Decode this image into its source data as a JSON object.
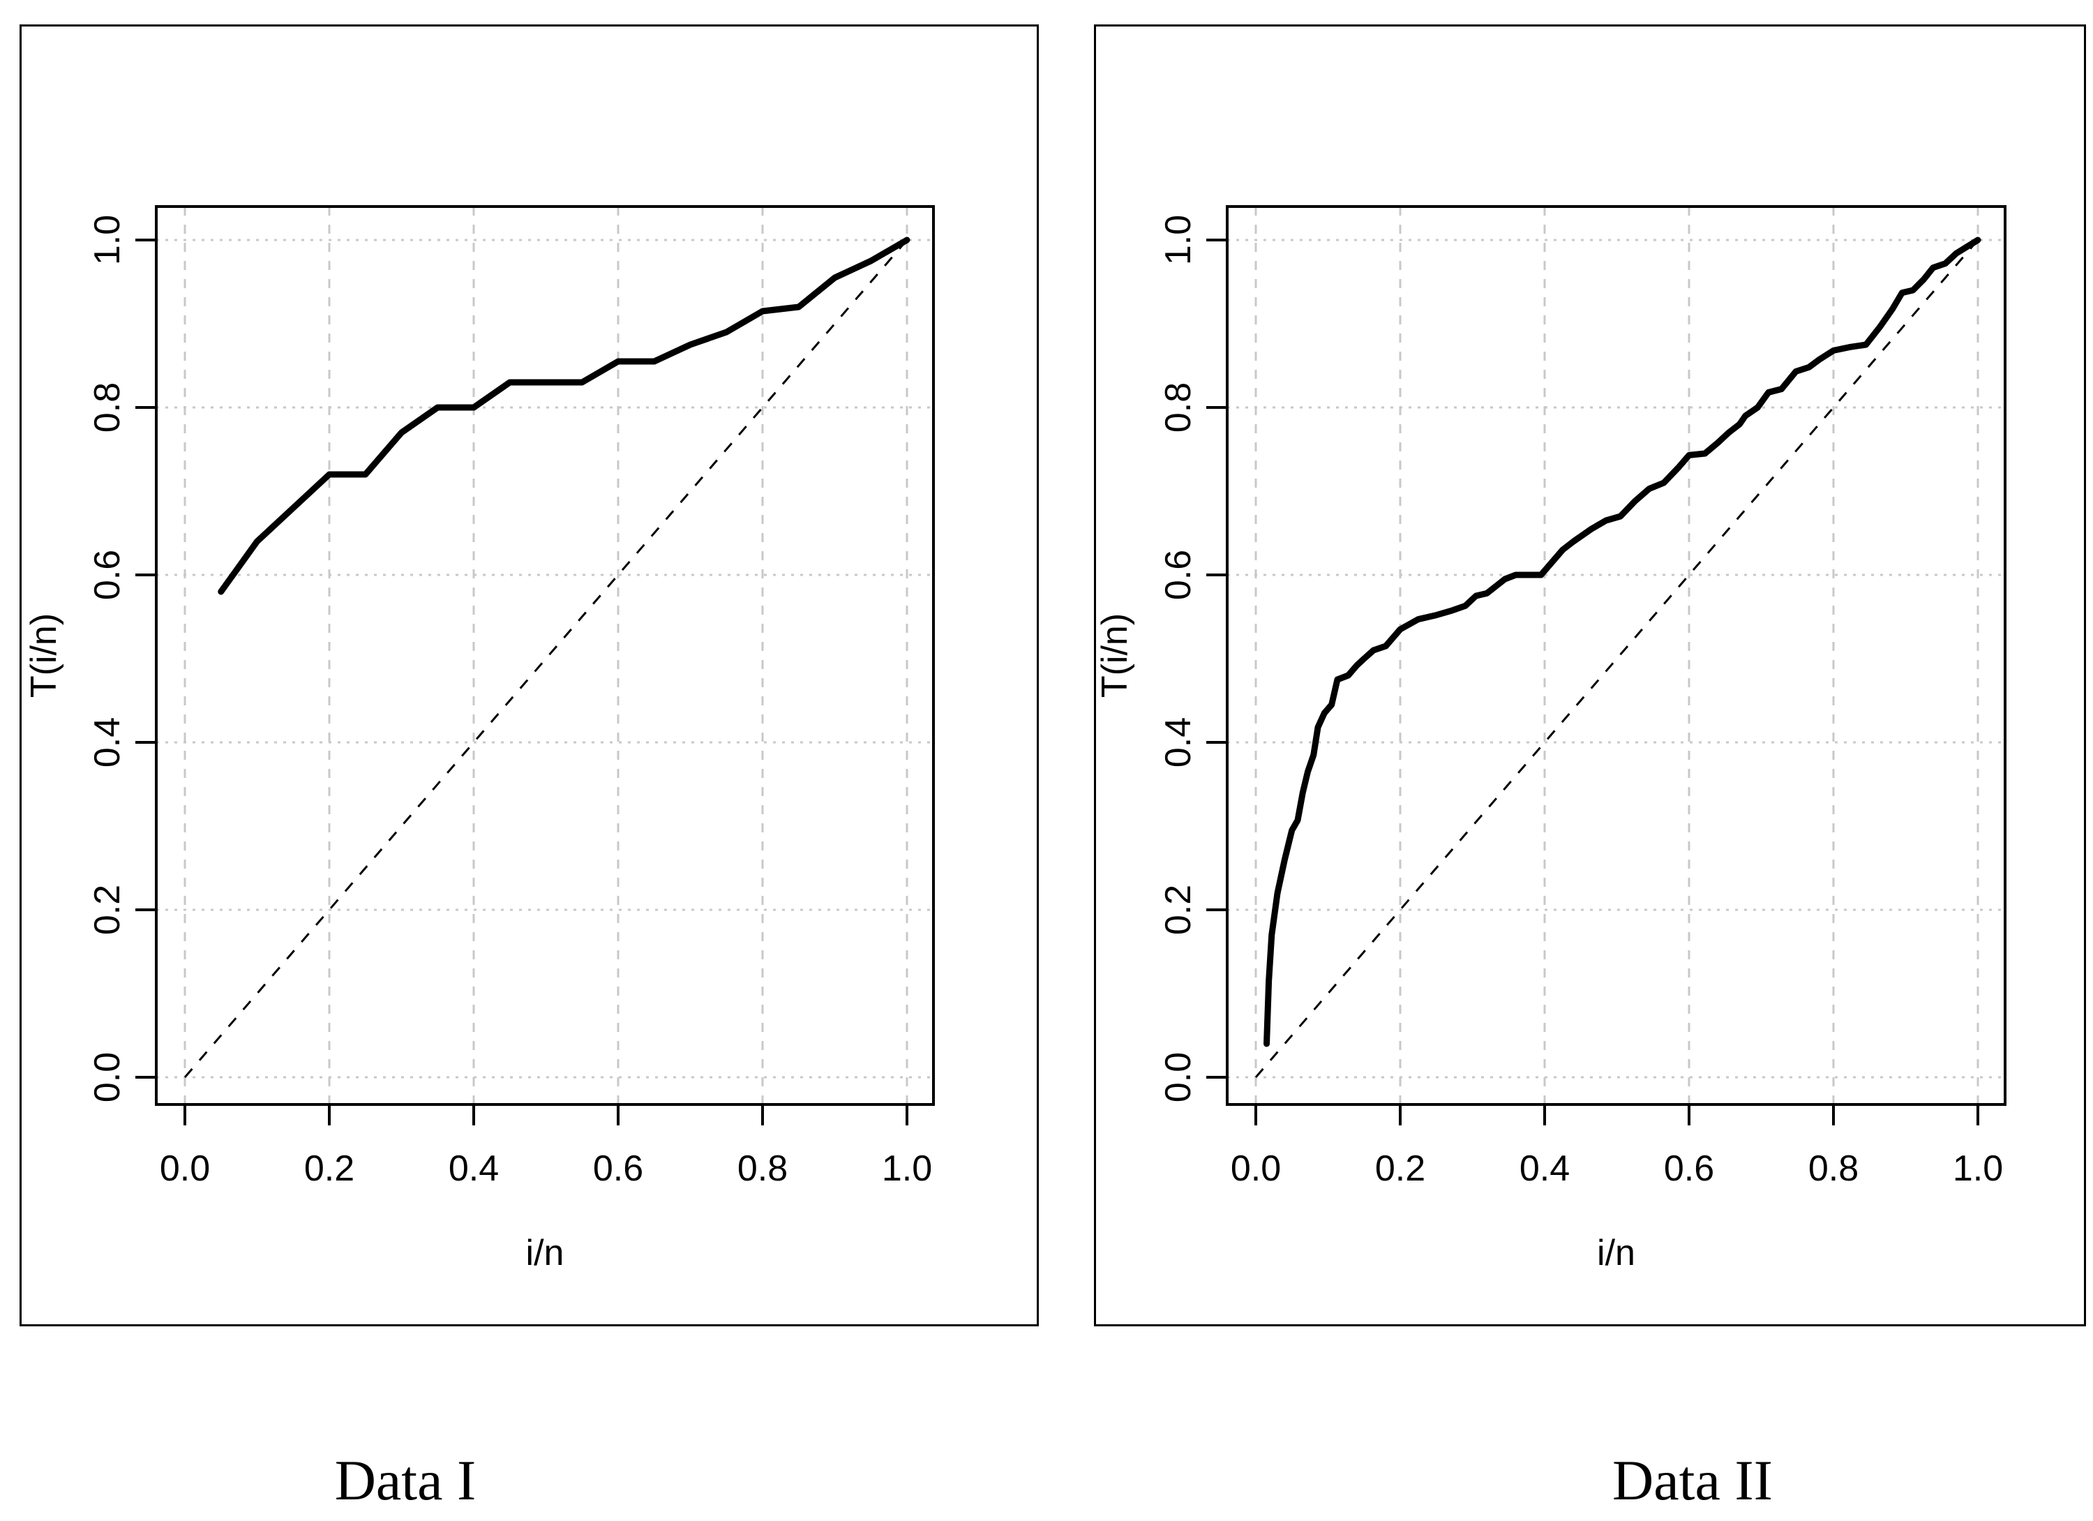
{
  "figure": {
    "captions": [
      "Data I",
      "Data II"
    ],
    "background_color": "#ffffff",
    "colors": {
      "curve": "#000000",
      "reference_line": "#000000",
      "grid": "#c8c8c8",
      "axis": "#000000",
      "text": "#000000"
    }
  },
  "chart_data": [
    {
      "type": "line",
      "title": "Data I",
      "xlabel": "i/n",
      "ylabel": "T(i/n)",
      "xlim": [
        0,
        1
      ],
      "ylim": [
        0,
        1
      ],
      "grid": true,
      "x_tick_labels": [
        "0.0",
        "0.2",
        "0.4",
        "0.6",
        "0.8",
        "1.0"
      ],
      "y_tick_labels": [
        "0.0",
        "0.2",
        "0.4",
        "0.6",
        "0.8",
        "1.0"
      ],
      "series": [
        {
          "name": "TTT transform curve",
          "style": "solid",
          "x": [
            0.05,
            0.1,
            0.15,
            0.2,
            0.25,
            0.3,
            0.35,
            0.4,
            0.45,
            0.5,
            0.55,
            0.6,
            0.65,
            0.7,
            0.75,
            0.8,
            0.85,
            0.9,
            0.95,
            1.0
          ],
          "y": [
            0.58,
            0.64,
            0.68,
            0.72,
            0.72,
            0.77,
            0.8,
            0.8,
            0.83,
            0.83,
            0.83,
            0.855,
            0.855,
            0.875,
            0.89,
            0.915,
            0.92,
            0.955,
            0.975,
            1.0
          ]
        },
        {
          "name": "45-degree reference line",
          "style": "dashed",
          "x": [
            0,
            1
          ],
          "y": [
            0,
            1
          ]
        }
      ]
    },
    {
      "type": "line",
      "title": "Data II",
      "xlabel": "i/n",
      "ylabel": "T(i/n)",
      "xlim": [
        0,
        1
      ],
      "ylim": [
        0,
        1
      ],
      "grid": true,
      "x_tick_labels": [
        "0.0",
        "0.2",
        "0.4",
        "0.6",
        "0.8",
        "1.0"
      ],
      "y_tick_labels": [
        "0.0",
        "0.2",
        "0.4",
        "0.6",
        "0.8",
        "1.0"
      ],
      "series": [
        {
          "name": "TTT transform curve",
          "style": "solid",
          "x": [
            0.015,
            0.018,
            0.022,
            0.03,
            0.04,
            0.05,
            0.058,
            0.065,
            0.072,
            0.08,
            0.086,
            0.095,
            0.105,
            0.113,
            0.128,
            0.14,
            0.15,
            0.163,
            0.18,
            0.2,
            0.225,
            0.25,
            0.27,
            0.29,
            0.305,
            0.32,
            0.345,
            0.36,
            0.395,
            0.41,
            0.425,
            0.44,
            0.465,
            0.485,
            0.505,
            0.525,
            0.545,
            0.565,
            0.585,
            0.6,
            0.622,
            0.64,
            0.655,
            0.67,
            0.678,
            0.695,
            0.71,
            0.728,
            0.748,
            0.766,
            0.78,
            0.8,
            0.822,
            0.845,
            0.865,
            0.882,
            0.895,
            0.91,
            0.925,
            0.938,
            0.955,
            0.97,
            1.0
          ],
          "y": [
            0.04,
            0.115,
            0.17,
            0.22,
            0.26,
            0.295,
            0.307,
            0.34,
            0.365,
            0.385,
            0.418,
            0.435,
            0.445,
            0.475,
            0.48,
            0.492,
            0.5,
            0.51,
            0.515,
            0.535,
            0.547,
            0.552,
            0.557,
            0.563,
            0.575,
            0.578,
            0.595,
            0.6,
            0.6,
            0.615,
            0.63,
            0.64,
            0.655,
            0.665,
            0.67,
            0.688,
            0.703,
            0.71,
            0.728,
            0.743,
            0.745,
            0.758,
            0.77,
            0.78,
            0.79,
            0.8,
            0.818,
            0.822,
            0.843,
            0.848,
            0.857,
            0.868,
            0.872,
            0.875,
            0.897,
            0.918,
            0.937,
            0.94,
            0.953,
            0.967,
            0.972,
            0.984,
            1.0
          ]
        },
        {
          "name": "45-degree reference line",
          "style": "dashed",
          "x": [
            0,
            1
          ],
          "y": [
            0,
            1
          ]
        }
      ]
    }
  ]
}
